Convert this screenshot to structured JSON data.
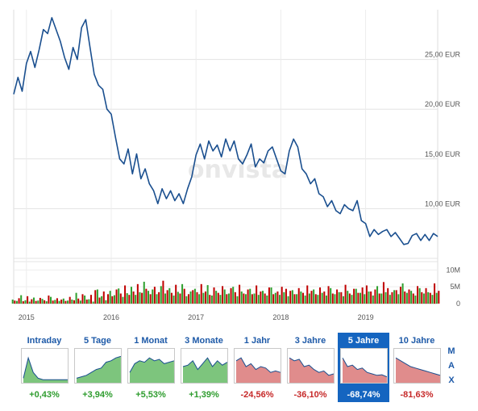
{
  "watermark": "onvista",
  "chart_data": {
    "type": "line",
    "title": "",
    "xlabel": "",
    "ylabel": "",
    "currency_unit": "EUR",
    "x": [
      2014.85,
      2014.9,
      2014.95,
      2015.0,
      2015.05,
      2015.1,
      2015.15,
      2015.2,
      2015.25,
      2015.3,
      2015.35,
      2015.4,
      2015.45,
      2015.5,
      2015.55,
      2015.6,
      2015.65,
      2015.7,
      2015.75,
      2015.8,
      2015.85,
      2015.9,
      2015.95,
      2016.0,
      2016.05,
      2016.1,
      2016.15,
      2016.2,
      2016.25,
      2016.3,
      2016.35,
      2016.4,
      2016.45,
      2016.5,
      2016.55,
      2016.6,
      2016.65,
      2016.7,
      2016.75,
      2016.8,
      2016.85,
      2016.9,
      2016.95,
      2017.0,
      2017.05,
      2017.1,
      2017.15,
      2017.2,
      2017.25,
      2017.3,
      2017.35,
      2017.4,
      2017.45,
      2017.5,
      2017.55,
      2017.6,
      2017.65,
      2017.7,
      2017.75,
      2017.8,
      2017.85,
      2017.9,
      2017.95,
      2018.0,
      2018.05,
      2018.1,
      2018.15,
      2018.2,
      2018.25,
      2018.3,
      2018.35,
      2018.4,
      2018.45,
      2018.5,
      2018.55,
      2018.6,
      2018.65,
      2018.7,
      2018.75,
      2018.8,
      2018.85,
      2018.9,
      2018.95,
      2019.0,
      2019.05,
      2019.1,
      2019.15,
      2019.2,
      2019.25,
      2019.3,
      2019.35,
      2019.4,
      2019.45,
      2019.5,
      2019.55,
      2019.6,
      2019.65,
      2019.7,
      2019.75,
      2019.8,
      2019.85
    ],
    "y": [
      21.5,
      23.2,
      21.8,
      24.6,
      25.8,
      24.2,
      26.0,
      28.0,
      27.6,
      29.2,
      28.0,
      26.8,
      25.2,
      24.0,
      26.2,
      25.0,
      28.2,
      29.0,
      26.2,
      23.5,
      22.4,
      22.0,
      20.0,
      19.5,
      17.2,
      15.0,
      14.5,
      16.0,
      13.5,
      15.5,
      13.0,
      14.0,
      12.5,
      11.8,
      10.5,
      12.0,
      11.0,
      11.8,
      10.8,
      11.5,
      10.5,
      12.0,
      13.2,
      15.4,
      16.5,
      15.0,
      16.8,
      15.8,
      16.4,
      15.2,
      17.0,
      15.8,
      16.8,
      15.0,
      14.5,
      15.4,
      16.5,
      14.2,
      15.0,
      14.6,
      15.8,
      16.2,
      15.0,
      13.8,
      13.5,
      15.8,
      17.0,
      16.2,
      14.0,
      13.5,
      12.5,
      13.0,
      11.5,
      11.2,
      10.2,
      10.8,
      9.8,
      9.5,
      10.4,
      10.0,
      9.8,
      10.8,
      8.8,
      8.5,
      7.2,
      7.9,
      7.4,
      7.7,
      7.9,
      7.2,
      7.6,
      7.0,
      6.4,
      6.5,
      7.3,
      7.5,
      6.8,
      7.4,
      6.8,
      7.5,
      7.2
    ],
    "volume_up": [
      1.2,
      0.8,
      2.5,
      1.0,
      0.6,
      1.8,
      0.9,
      1.4,
      0.7,
      2.0,
      1.1,
      0.8,
      1.5,
      0.9,
      1.2,
      3.2,
      0.9,
      2.4,
      1.3,
      0.6,
      4.2,
      2.2,
      1.0,
      3.8,
      2.5,
      4.5,
      2.0,
      3.1,
      5.0,
      2.6,
      3.4,
      6.5,
      3.8,
      4.2,
      2.8,
      5.2,
      3.0,
      4.6,
      2.4,
      3.5,
      5.8,
      2.2,
      3.6,
      4.4,
      2.8,
      3.2,
      5.5,
      2.4,
      3.8,
      2.6,
      4.2,
      3.0,
      5.0,
      2.2,
      3.6,
      2.8,
      4.4,
      3.0,
      2.6,
      3.8,
      2.4,
      4.8,
      3.2,
      2.6,
      3.4,
      2.2,
      4.0,
      2.8,
      3.6,
      2.4,
      3.0,
      4.2,
      2.6,
      3.2,
      2.4,
      4.6,
      2.8,
      3.4,
      2.2,
      3.8,
      2.6,
      4.4,
      3.2,
      2.8,
      3.6,
      2.4,
      5.2,
      3.0,
      3.4,
      2.6,
      4.0,
      2.8,
      6.0,
      3.2,
      3.8,
      2.4,
      4.6,
      3.0,
      3.4,
      2.6,
      3.2
    ],
    "volume_down": [
      0.9,
      1.6,
      0.7,
      2.2,
      1.3,
      0.8,
      1.7,
      1.0,
      2.4,
      0.9,
      1.6,
      1.2,
      0.8,
      2.0,
      1.0,
      1.5,
      2.8,
      1.2,
      2.6,
      4.0,
      1.8,
      3.6,
      2.8,
      2.2,
      4.2,
      3.0,
      5.4,
      2.6,
      3.6,
      5.8,
      3.2,
      4.4,
      2.8,
      5.0,
      3.4,
      6.8,
      4.0,
      3.2,
      5.6,
      3.0,
      4.4,
      2.8,
      4.0,
      3.4,
      5.8,
      3.6,
      2.6,
      4.8,
      3.2,
      5.2,
      2.8,
      4.6,
      3.4,
      5.6,
      3.0,
      4.2,
      2.8,
      5.4,
      3.6,
      3.0,
      4.8,
      2.8,
      3.6,
      5.0,
      4.4,
      3.8,
      2.8,
      4.6,
      3.2,
      5.4,
      3.8,
      2.8,
      4.8,
      3.6,
      5.2,
      3.0,
      4.2,
      3.4,
      5.6,
      3.0,
      4.4,
      3.2,
      4.8,
      5.4,
      3.6,
      4.2,
      3.0,
      6.4,
      4.6,
      3.4,
      4.0,
      5.0,
      3.6,
      4.2,
      3.0,
      5.2,
      3.4,
      4.6,
      3.2,
      6.0,
      3.8
    ],
    "xlim": [
      2014.85,
      2019.85
    ],
    "ylim": [
      5.0,
      30.0
    ],
    "volume_ylim": [
      0,
      12
    ],
    "price_ticks": [
      "25,00 EUR",
      "20,00 EUR",
      "15,00 EUR",
      "10,00 EUR"
    ],
    "price_tick_values": [
      25,
      20,
      15,
      10
    ],
    "volume_ticks": [
      "10M",
      "5M",
      "0"
    ],
    "volume_tick_values": [
      10,
      5,
      0
    ],
    "year_ticks": [
      "2015",
      "2016",
      "2017",
      "2018",
      "2019"
    ],
    "year_tick_values": [
      2015.0,
      2016.0,
      2017.0,
      2018.0,
      2019.0
    ],
    "line_color": "#1a4f8f",
    "volume_up_color": "#2ea02e",
    "volume_down_color": "#c00000",
    "grid": true
  },
  "ranges": [
    {
      "label": "Intraday",
      "change": "+0,43%",
      "direction": "pos",
      "active": false
    },
    {
      "label": "5 Tage",
      "change": "+3,94%",
      "direction": "pos",
      "active": false
    },
    {
      "label": "1 Monat",
      "change": "+5,53%",
      "direction": "pos",
      "active": false
    },
    {
      "label": "3 Monate",
      "change": "+1,39%",
      "direction": "pos",
      "active": false
    },
    {
      "label": "1 Jahr",
      "change": "-24,56%",
      "direction": "neg",
      "active": false
    },
    {
      "label": "3 Jahre",
      "change": "-36,10%",
      "direction": "neg",
      "active": false
    },
    {
      "label": "5 Jahre",
      "change": "-68,74%",
      "direction": "neg",
      "active": true
    },
    {
      "label": "10 Jahre",
      "change": "-81,63%",
      "direction": "neg",
      "active": false
    }
  ],
  "scale_buttons": [
    "M",
    "A",
    "X"
  ],
  "colors": {
    "accent": "#1565c0",
    "positive": "#2e9c2e",
    "negative": "#c62828",
    "thumb_pos_fill": "#7dc57d",
    "thumb_neg_fill": "#e08c8c"
  }
}
